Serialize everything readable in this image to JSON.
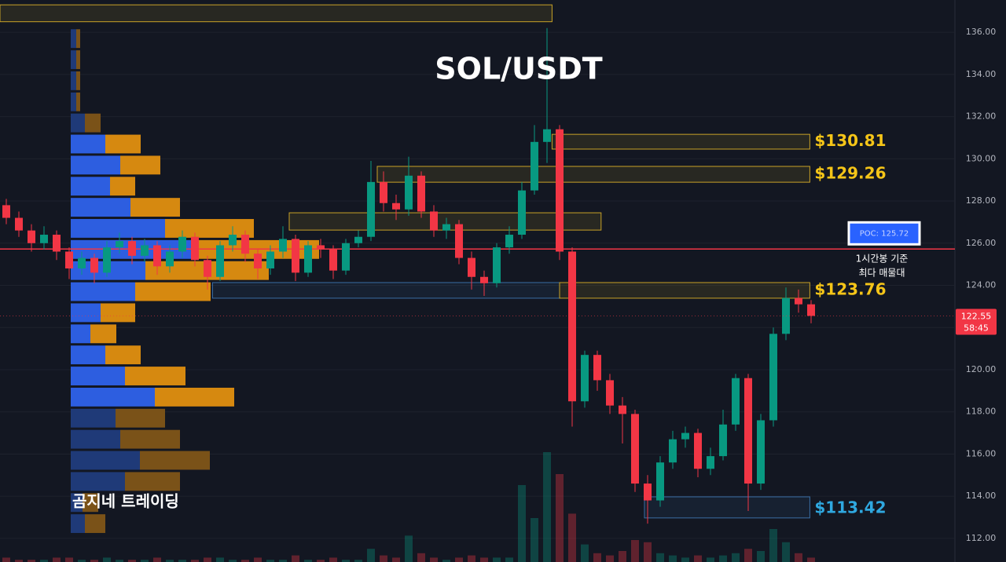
{
  "chart_data": {
    "type": "candlestick",
    "title": "SOL/USDT",
    "watermark": "곰지네 트레이딩",
    "poc_note": [
      "1시간봉 기준",
      "최다 매물대"
    ],
    "up_color": "#089981",
    "down_color": "#f23645",
    "ylim": [
      110.88,
      137.53
    ],
    "yticks": [
      {
        "value": 112,
        "label": "112.00"
      },
      {
        "value": 114,
        "label": "114.00"
      },
      {
        "value": 116,
        "label": "116.00"
      },
      {
        "value": 118,
        "label": "118.00"
      },
      {
        "value": 120,
        "label": "120.00"
      },
      {
        "value": 122,
        "label": "122.00"
      },
      {
        "value": 124,
        "label": "124.00"
      },
      {
        "value": 126,
        "label": "126.00"
      },
      {
        "value": 128,
        "label": "128.00"
      },
      {
        "value": 130,
        "label": "130.00"
      },
      {
        "value": 132,
        "label": "132.00"
      },
      {
        "value": 134,
        "label": "134.00"
      },
      {
        "value": 136,
        "label": "136.00"
      }
    ],
    "grid": true,
    "candles": [
      [
        127.8,
        128.1,
        126.9,
        127.2
      ],
      [
        127.2,
        127.5,
        126.3,
        126.6
      ],
      [
        126.6,
        126.9,
        125.6,
        126.0
      ],
      [
        126.0,
        126.8,
        125.7,
        126.4
      ],
      [
        126.4,
        126.6,
        125.2,
        125.6
      ],
      [
        125.6,
        125.8,
        124.3,
        124.8
      ],
      [
        124.8,
        125.6,
        124.5,
        125.3
      ],
      [
        125.3,
        125.5,
        124.1,
        124.6
      ],
      [
        124.6,
        126.1,
        124.4,
        125.8
      ],
      [
        125.8,
        126.5,
        125.5,
        126.1
      ],
      [
        126.1,
        126.3,
        125.0,
        125.4
      ],
      [
        125.4,
        126.2,
        125.1,
        125.9
      ],
      [
        125.9,
        126.1,
        124.5,
        124.9
      ],
      [
        124.9,
        125.9,
        124.6,
        125.6
      ],
      [
        125.6,
        126.6,
        125.3,
        126.3
      ],
      [
        126.3,
        126.5,
        124.9,
        125.2
      ],
      [
        125.2,
        125.4,
        123.8,
        124.4
      ],
      [
        124.4,
        126.1,
        124.2,
        125.9
      ],
      [
        125.9,
        126.8,
        125.6,
        126.4
      ],
      [
        126.4,
        126.6,
        125.1,
        125.5
      ],
      [
        125.5,
        125.7,
        124.3,
        124.8
      ],
      [
        124.8,
        125.9,
        124.5,
        125.6
      ],
      [
        125.6,
        126.8,
        125.3,
        126.2
      ],
      [
        126.2,
        126.4,
        124.2,
        124.6
      ],
      [
        124.6,
        126.1,
        124.4,
        125.9
      ],
      [
        125.9,
        126.2,
        125.3,
        125.7
      ],
      [
        125.7,
        125.9,
        124.3,
        124.7
      ],
      [
        124.7,
        126.2,
        124.5,
        126.0
      ],
      [
        126.0,
        126.6,
        125.8,
        126.3
      ],
      [
        126.3,
        129.9,
        126.1,
        128.9
      ],
      [
        128.9,
        129.4,
        127.5,
        127.9
      ],
      [
        127.9,
        128.3,
        127.1,
        127.6
      ],
      [
        127.6,
        130.1,
        127.3,
        129.2
      ],
      [
        129.2,
        129.4,
        127.2,
        127.5
      ],
      [
        127.5,
        127.8,
        126.3,
        126.6
      ],
      [
        126.6,
        127.2,
        126.2,
        126.9
      ],
      [
        126.9,
        127.1,
        125.0,
        125.3
      ],
      [
        125.3,
        125.6,
        123.8,
        124.4
      ],
      [
        124.4,
        124.7,
        123.5,
        124.1
      ],
      [
        124.1,
        126.0,
        123.9,
        125.8
      ],
      [
        125.8,
        126.8,
        125.5,
        126.4
      ],
      [
        126.4,
        128.9,
        126.2,
        128.5
      ],
      [
        128.5,
        131.6,
        128.3,
        130.8
      ],
      [
        130.8,
        136.2,
        129.8,
        131.4
      ],
      [
        131.4,
        131.6,
        125.2,
        125.6
      ],
      [
        125.6,
        125.8,
        117.3,
        118.5
      ],
      [
        118.5,
        120.9,
        118.2,
        120.7
      ],
      [
        120.7,
        120.9,
        119.0,
        119.5
      ],
      [
        119.5,
        119.8,
        117.9,
        118.3
      ],
      [
        118.3,
        118.7,
        116.5,
        117.9
      ],
      [
        117.9,
        118.1,
        114.2,
        114.6
      ],
      [
        114.6,
        115.0,
        112.7,
        113.8
      ],
      [
        113.8,
        115.9,
        113.5,
        115.6
      ],
      [
        115.6,
        117.1,
        115.3,
        116.7
      ],
      [
        116.7,
        117.3,
        116.3,
        117.0
      ],
      [
        117.0,
        117.2,
        114.9,
        115.3
      ],
      [
        115.3,
        116.3,
        115.0,
        115.9
      ],
      [
        115.9,
        118.1,
        115.7,
        117.4
      ],
      [
        117.4,
        119.8,
        117.1,
        119.6
      ],
      [
        119.6,
        119.8,
        113.3,
        114.6
      ],
      [
        114.6,
        117.9,
        114.3,
        117.6
      ],
      [
        117.6,
        122.0,
        117.3,
        121.7
      ],
      [
        121.7,
        123.9,
        121.4,
        123.4
      ],
      [
        123.4,
        123.8,
        122.7,
        123.1
      ],
      [
        123.1,
        123.3,
        122.2,
        122.55
      ]
    ],
    "volumes": [
      2,
      1,
      1,
      1,
      2,
      2,
      1,
      1,
      2,
      1,
      1,
      1,
      2,
      1,
      1,
      1,
      2,
      2,
      1,
      1,
      2,
      1,
      1,
      3,
      1,
      1,
      2,
      1,
      1,
      6,
      3,
      2,
      12,
      4,
      2,
      1,
      2,
      3,
      2,
      2,
      2,
      35,
      20,
      50,
      40,
      22,
      8,
      4,
      3,
      5,
      10,
      9,
      4,
      3,
      2,
      3,
      2,
      3,
      4,
      6,
      5,
      15,
      9,
      4,
      2
    ],
    "volume_lim": [
      0,
      100
    ],
    "profile": {
      "price_bins": [
        136.2,
        135.2,
        134.2,
        133.2,
        132.2,
        131.2,
        130.2,
        129.2,
        128.2,
        127.2,
        126.2,
        125.2,
        124.2,
        123.2,
        122.2,
        121.2,
        120.2,
        119.2,
        118.2,
        117.2,
        116.2,
        115.2,
        114.2,
        113.2,
        112.2
      ],
      "buy": [
        7,
        7,
        7,
        7,
        18,
        44,
        63,
        50,
        76,
        120,
        155,
        95,
        82,
        38,
        25,
        44,
        69,
        107,
        57,
        63,
        88,
        69,
        15,
        18
      ],
      "sell": [
        5,
        5,
        5,
        5,
        20,
        45,
        51,
        32,
        63,
        113,
        161,
        157,
        96,
        44,
        33,
        45,
        77,
        101,
        63,
        76,
        89,
        70,
        20,
        26
      ],
      "lim": [
        0,
        320
      ],
      "value_area": [
        118.2,
        131.2
      ]
    },
    "zones": [
      {
        "low": 136.5,
        "high": 137.3,
        "start": -0.5,
        "end": 43.4,
        "color": "#c9a227"
      },
      {
        "low": 130.46,
        "high": 131.16,
        "start": 43.4,
        "end": 63.9,
        "color": "#c9a227",
        "value": 130.81,
        "value_label": "$130.81"
      },
      {
        "low": 128.89,
        "high": 129.64,
        "start": 29.5,
        "end": 63.9,
        "color": "#c9a227",
        "value": 129.26,
        "value_label": "$129.26"
      },
      {
        "low": 126.62,
        "high": 127.44,
        "start": 22.5,
        "end": 47.3,
        "color": "#c9a227"
      },
      {
        "low": 123.39,
        "high": 124.13,
        "start": 16.4,
        "end": 44.0,
        "color": "#3a6ea5"
      },
      {
        "low": 123.39,
        "high": 124.13,
        "start": 44.0,
        "end": 63.9,
        "color": "#c9a227",
        "value": 123.76,
        "value_label": "$123.76"
      },
      {
        "low": 112.97,
        "high": 113.97,
        "start": 50.75,
        "end": 63.9,
        "color": "#3a6ea5",
        "value": 113.42,
        "value_label": "$113.42"
      }
    ],
    "poc": {
      "value": 125.72,
      "label": "POC: 125.72",
      "color": "#f23645"
    },
    "last_price": 122.55,
    "countdown": "58:45"
  }
}
